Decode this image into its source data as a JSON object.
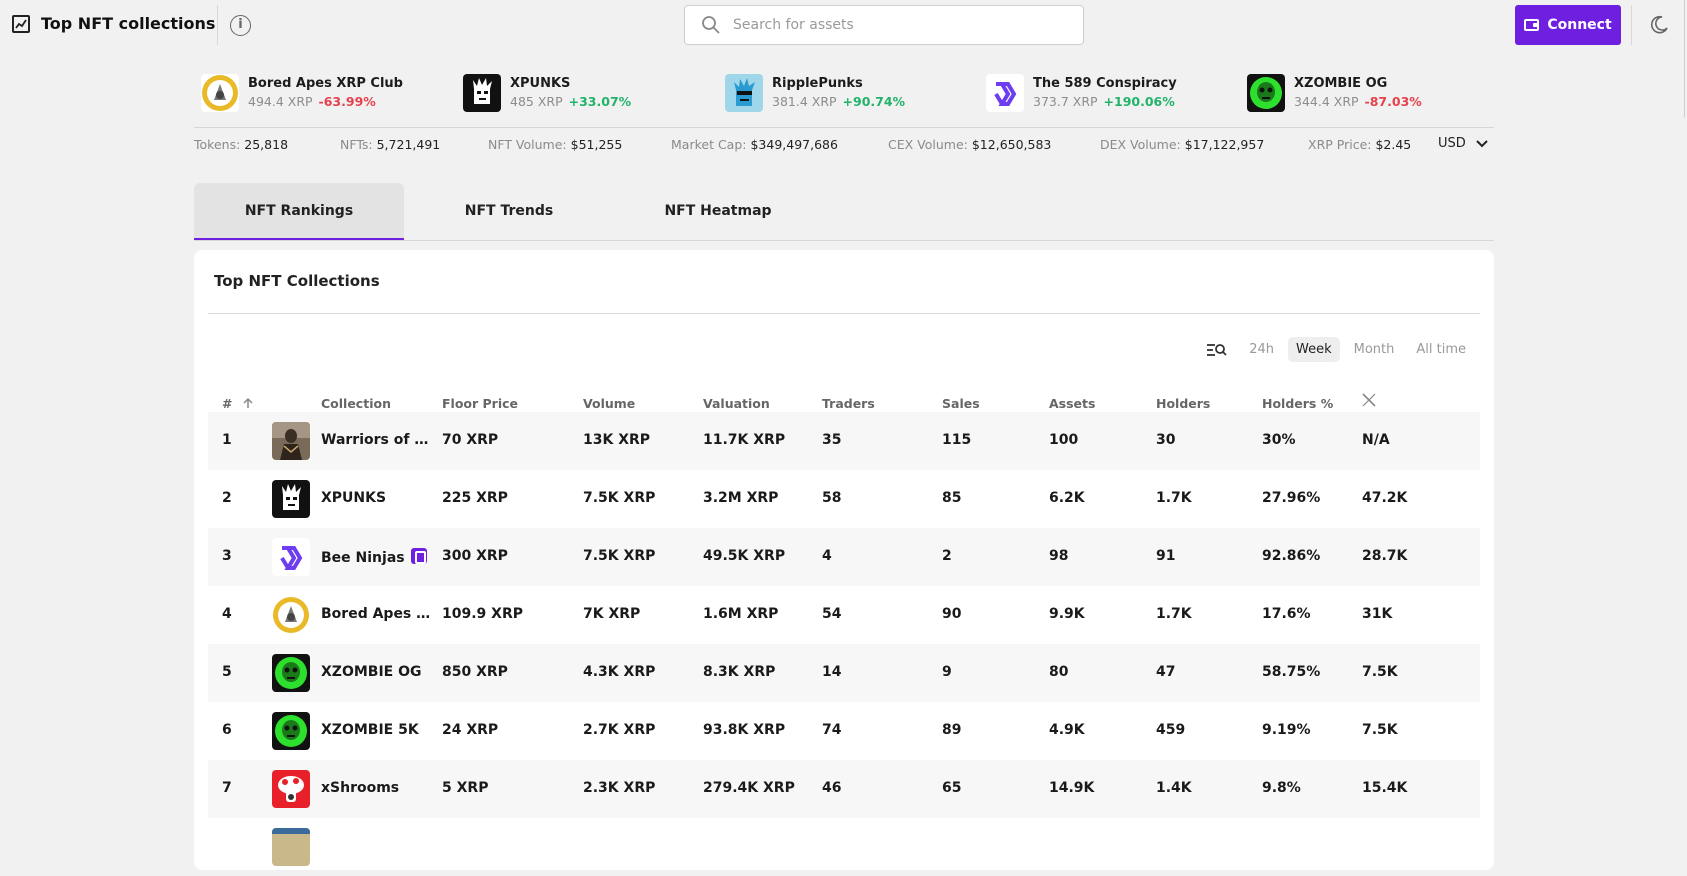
{
  "header": {
    "title": "Top NFT collections",
    "search_placeholder": "Search for assets",
    "connect_label": "Connect"
  },
  "ticker": [
    {
      "name": "Bored Apes XRP Club",
      "price": "494.4 XRP",
      "change": "-63.99%",
      "trend": "neg"
    },
    {
      "name": "XPUNKS",
      "price": "485 XRP",
      "change": "+33.07%",
      "trend": "pos"
    },
    {
      "name": "RipplePunks",
      "price": "381.4 XRP",
      "change": "+90.74%",
      "trend": "pos"
    },
    {
      "name": "The 589 Conspiracy",
      "price": "373.7 XRP",
      "change": "+190.06%",
      "trend": "pos"
    },
    {
      "name": "XZOMBIE OG",
      "price": "344.4 XRP",
      "change": "-87.03%",
      "trend": "neg"
    }
  ],
  "stats": {
    "tokens_label": "Tokens:",
    "tokens": "25,818",
    "nfts_label": "NFTs:",
    "nfts": "5,721,491",
    "nft_volume_label": "NFT Volume:",
    "nft_volume": "$51,255",
    "market_cap_label": "Market Cap:",
    "market_cap": "$349,497,686",
    "cex_volume_label": "CEX Volume:",
    "cex_volume": "$12,650,583",
    "dex_volume_label": "DEX Volume:",
    "dex_volume": "$17,122,957",
    "xrp_price_label": "XRP Price:",
    "xrp_price": "$2.45",
    "currency": "USD"
  },
  "tabs": [
    "NFT Rankings",
    "NFT Trends",
    "NFT Heatmap"
  ],
  "card": {
    "title": "Top NFT Collections",
    "filters": [
      "24h",
      "Week",
      "Month",
      "All time"
    ],
    "active_filter": "Week"
  },
  "table": {
    "headers": [
      "#",
      "Collection",
      "Floor Price",
      "Volume",
      "Valuation",
      "Traders",
      "Sales",
      "Assets",
      "Holders",
      "Holders %"
    ],
    "rows": [
      {
        "rank": "1",
        "collection": "Warriors of Gi...",
        "floor": "70 XRP",
        "volume": "13K XRP",
        "valuation": "11.7K XRP",
        "traders": "35",
        "sales": "115",
        "assets": "100",
        "holders": "30",
        "holders_pct": "30%",
        "x": "N/A"
      },
      {
        "rank": "2",
        "collection": "XPUNKS",
        "floor": "225 XRP",
        "volume": "7.5K XRP",
        "valuation": "3.2M XRP",
        "traders": "58",
        "sales": "85",
        "assets": "6.2K",
        "holders": "1.7K",
        "holders_pct": "27.96%",
        "x": "47.2K"
      },
      {
        "rank": "3",
        "collection": "Bee Ninjas",
        "floor": "300 XRP",
        "volume": "7.5K XRP",
        "valuation": "49.5K XRP",
        "traders": "4",
        "sales": "2",
        "assets": "98",
        "holders": "91",
        "holders_pct": "92.86%",
        "x": "28.7K"
      },
      {
        "rank": "4",
        "collection": "Bored Apes X...",
        "floor": "109.9 XRP",
        "volume": "7K XRP",
        "valuation": "1.6M XRP",
        "traders": "54",
        "sales": "90",
        "assets": "9.9K",
        "holders": "1.7K",
        "holders_pct": "17.6%",
        "x": "31K"
      },
      {
        "rank": "5",
        "collection": "XZOMBIE OG",
        "floor": "850 XRP",
        "volume": "4.3K XRP",
        "valuation": "8.3K XRP",
        "traders": "14",
        "sales": "9",
        "assets": "80",
        "holders": "47",
        "holders_pct": "58.75%",
        "x": "7.5K"
      },
      {
        "rank": "6",
        "collection": "XZOMBIE 5K",
        "floor": "24 XRP",
        "volume": "2.7K XRP",
        "valuation": "93.8K XRP",
        "traders": "74",
        "sales": "89",
        "assets": "4.9K",
        "holders": "459",
        "holders_pct": "9.19%",
        "x": "7.5K"
      },
      {
        "rank": "7",
        "collection": "xShrooms",
        "floor": "5 XRP",
        "volume": "2.3K XRP",
        "valuation": "279.4K XRP",
        "traders": "46",
        "sales": "65",
        "assets": "14.9K",
        "holders": "1.4K",
        "holders_pct": "9.8%",
        "x": "15.4K"
      }
    ]
  },
  "colors": {
    "accent": "#6f1fe0",
    "positive": "#22b36a",
    "negative": "#e4424d"
  }
}
